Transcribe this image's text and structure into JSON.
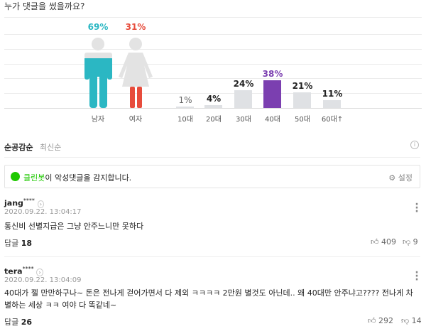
{
  "title": "누가 댓글을 썼을까요?",
  "chart_data": {
    "type": "bar",
    "gender": {
      "categories": [
        "남자",
        "여자"
      ],
      "values": [
        69,
        31
      ],
      "colors": [
        "#2bb7c3",
        "#e74c3c"
      ]
    },
    "age": {
      "categories": [
        "10대",
        "20대",
        "30대",
        "40대",
        "50대",
        "60대↑"
      ],
      "values": [
        1,
        4,
        24,
        38,
        21,
        11
      ],
      "highlight": "40대",
      "highlight_color": "#7b3fb0",
      "bar_color": "#dfe1e4"
    },
    "ylim": [
      0,
      100
    ]
  },
  "sort": {
    "tabs": [
      "순공감순",
      "최신순"
    ],
    "active": "순공감순"
  },
  "cleanbot": {
    "name": "클린봇",
    "text": "이 악성댓글을 감지합니다.",
    "settings": "설정",
    "color": "#1ec800"
  },
  "comments": [
    {
      "user": "jang",
      "mask": "****",
      "date": "2020.09.22. 13:04:17",
      "text": "통신비 선별지급은 그냥 안주느니만 못하다",
      "reply_label": "답글",
      "replies": "18",
      "likes": "409",
      "dislikes": "9"
    },
    {
      "user": "tera",
      "mask": "****",
      "date": "2020.09.22. 13:04:09",
      "text": "40대가 젤 만만하구나~ 돈은 전나게 걷어가면서 다 제외 ㅋㅋㅋㅋ 2만원 별것도 아닌데.. 왜 40대만 안주냐고???? 전나게 차별하는 세상 ㅋㅋ 여야 다 똑같네~",
      "reply_label": "답글",
      "replies": "26",
      "likes": "292",
      "dislikes": "14"
    }
  ]
}
